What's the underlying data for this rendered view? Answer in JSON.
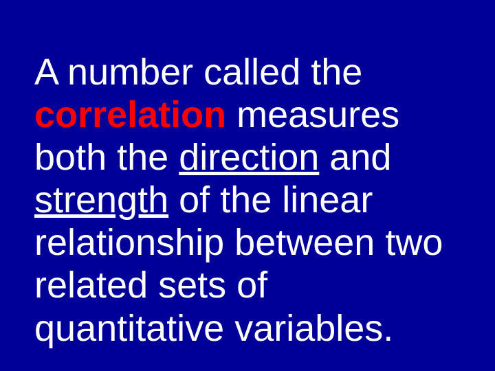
{
  "slide": {
    "background_color": "#000099",
    "text_color": "#ffffff",
    "highlight_color": "#ff0000",
    "font_family": "Arial",
    "font_size_pt": 40,
    "line_height": 1.15,
    "segments": {
      "s1": "A number called the ",
      "s2": "correlation",
      "s3": " measures both the ",
      "s4": "direction",
      "s5": " and ",
      "s6": "strength",
      "s7": " of the linear relationship between two related sets of quantitative variables."
    },
    "emphasis": {
      "s2": {
        "bold": true,
        "color": "#ff0000"
      },
      "s4": {
        "underline": true
      },
      "s6": {
        "underline": true
      }
    }
  }
}
